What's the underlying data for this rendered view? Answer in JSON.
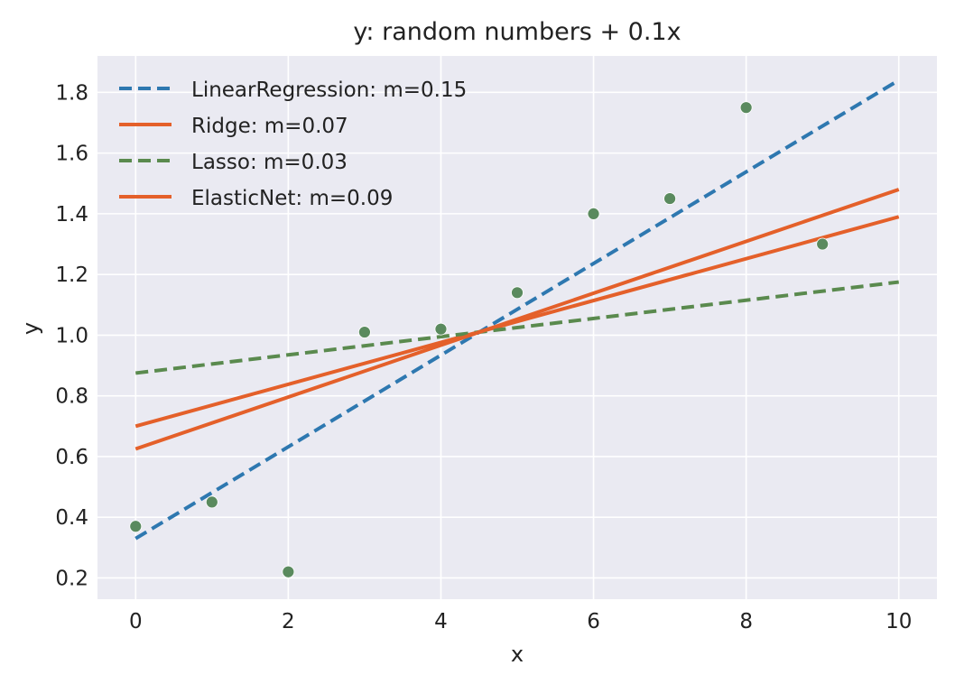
{
  "chart_data": {
    "type": "scatter",
    "title": "y: random numbers + 0.1x",
    "xlabel": "x",
    "ylabel": "y",
    "xlim": [
      -0.5,
      10.5
    ],
    "ylim": [
      0.13,
      1.92
    ],
    "xticks": [
      0,
      2,
      4,
      6,
      8,
      10
    ],
    "yticks": [
      0.2,
      0.4,
      0.6,
      0.8,
      1.0,
      1.2,
      1.4,
      1.6,
      1.8
    ],
    "ytick_labels": [
      "0.2",
      "0.4",
      "0.6",
      "0.8",
      "1.0",
      "1.2",
      "1.4",
      "1.6",
      "1.8"
    ],
    "grid": true,
    "background": "#eaeaf2",
    "legend_position": "top-left",
    "points": {
      "color": "#5a8a5e",
      "x": [
        0,
        1,
        2,
        3,
        4,
        5,
        6,
        7,
        8,
        9
      ],
      "y": [
        0.37,
        0.45,
        0.22,
        1.01,
        1.02,
        1.14,
        1.4,
        1.45,
        1.75,
        1.3
      ]
    },
    "series": [
      {
        "name": "LinearRegression: m=0.15",
        "style": "dashed",
        "color": "#2e78b0",
        "x": [
          0,
          10
        ],
        "y": [
          0.33,
          1.84
        ]
      },
      {
        "name": "Ridge: m=0.07",
        "style": "solid",
        "color": "#e4602a",
        "x": [
          0,
          10
        ],
        "y": [
          0.7,
          1.39
        ]
      },
      {
        "name": "Lasso: m=0.03",
        "style": "dashed",
        "color": "#5a8a4e",
        "x": [
          0,
          10
        ],
        "y": [
          0.875,
          1.175
        ]
      },
      {
        "name": "ElasticNet: m=0.09",
        "style": "solid",
        "color": "#e4602a",
        "x": [
          0,
          10
        ],
        "y": [
          0.625,
          1.48
        ]
      }
    ]
  }
}
